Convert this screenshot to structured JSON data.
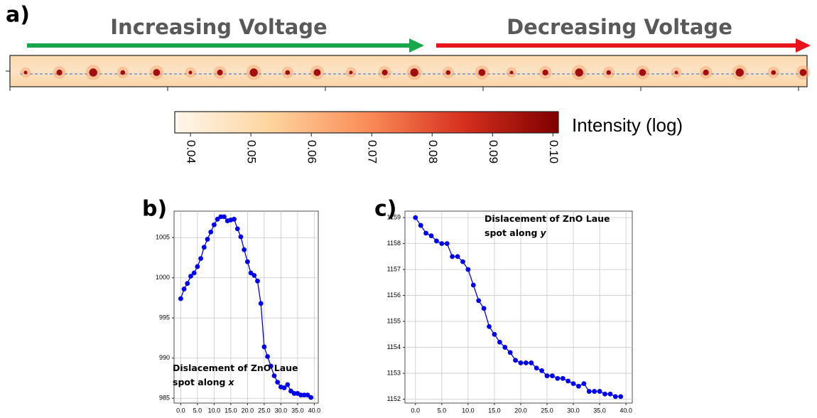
{
  "panel_a": {
    "label": "a)",
    "left_arrow": "Increasing Voltage",
    "right_arrow": "Decreasing Voltage"
  },
  "chart_data": [
    {
      "type": "colorbar",
      "label": "Intensity (log)",
      "colors": [
        "#fff7ec",
        "#fdd49e",
        "#fc8d59",
        "#d7301f",
        "#7f0000"
      ],
      "xlim": [
        0.0374,
        0.1009
      ],
      "xticks": [
        0.04,
        0.05,
        0.06,
        0.07,
        0.08,
        0.09,
        {
          "value": 0.1,
          "label": "0.10"
        }
      ]
    },
    {
      "type": "line",
      "panel_label": "b)",
      "annotation": [
        "Dislacement of ZnO Laue",
        "spot along"
      ],
      "annotation_var": "x",
      "x": [
        0,
        1,
        2,
        3,
        4,
        5,
        6,
        7,
        8,
        9,
        10,
        11,
        12,
        13,
        14,
        15,
        16,
        17,
        18,
        19,
        20,
        21,
        22,
        23,
        24,
        25,
        26,
        27,
        28,
        29,
        30,
        31,
        32,
        33,
        34,
        35,
        36,
        37,
        38,
        39
      ],
      "series": [
        {
          "color": "#0000ee",
          "values": [
            997.4,
            998.6,
            999.3,
            1000.2,
            1000.6,
            1001.4,
            1002.4,
            1003.8,
            1004.8,
            1005.7,
            1006.6,
            1007.3,
            1007.6,
            1007.6,
            1007.1,
            1007.2,
            1007.3,
            1006.1,
            1005.1,
            1003.5,
            1002.0,
            1000.6,
            1000.3,
            999.6,
            996.8,
            991.4,
            990.2,
            989.0,
            987.8,
            987.0,
            986.4,
            986.3,
            986.7,
            985.9,
            985.6,
            985.6,
            985.4,
            985.4,
            985.4,
            985.1
          ]
        }
      ],
      "xlim": [
        -2,
        41.2
      ],
      "ylim": [
        984.4,
        1008.3
      ],
      "grid": true,
      "xticks": [
        {
          "value": 0,
          "label": "0.0"
        },
        {
          "value": 5,
          "label": "5.0"
        },
        {
          "value": 10,
          "label": "10.0"
        },
        {
          "value": 15,
          "label": "15.0"
        },
        {
          "value": 20,
          "label": "20.0"
        },
        {
          "value": 25,
          "label": "25.0"
        },
        {
          "value": 30,
          "label": "30.0"
        },
        {
          "value": 35,
          "label": "35.0"
        },
        {
          "value": 40,
          "label": "40.0"
        }
      ],
      "yticks": [
        985,
        990,
        995,
        1000,
        1005
      ]
    },
    {
      "type": "line",
      "panel_label": "c)",
      "annotation": [
        "Dislacement of ZnO Laue",
        "spot along"
      ],
      "annotation_var": "y",
      "x": [
        0,
        1,
        2,
        3,
        4,
        5,
        6,
        7,
        8,
        9,
        10,
        11,
        12,
        13,
        14,
        15,
        16,
        17,
        18,
        19,
        20,
        21,
        22,
        23,
        24,
        25,
        26,
        27,
        28,
        29,
        30,
        31,
        32,
        33,
        34,
        35,
        36,
        37,
        38,
        39
      ],
      "series": [
        {
          "color": "#0000ee",
          "values": [
            1159.0,
            1158.7,
            1158.4,
            1158.3,
            1158.1,
            1158.0,
            1158.0,
            1157.5,
            1157.5,
            1157.3,
            1157.0,
            1156.4,
            1155.8,
            1155.5,
            1154.8,
            1154.5,
            1154.2,
            1154.0,
            1153.8,
            1153.5,
            1153.4,
            1153.4,
            1153.4,
            1153.2,
            1153.1,
            1152.9,
            1152.9,
            1152.8,
            1152.8,
            1152.7,
            1152.6,
            1152.5,
            1152.6,
            1152.3,
            1152.3,
            1152.3,
            1152.2,
            1152.2,
            1152.1,
            1152.1
          ]
        }
      ],
      "xlim": [
        -2,
        41.2
      ],
      "ylim": [
        1151.85,
        1159.25
      ],
      "grid": true,
      "xticks": [
        {
          "value": 0,
          "label": "0.0"
        },
        {
          "value": 5,
          "label": "5.0"
        },
        {
          "value": 10,
          "label": "10.0"
        },
        {
          "value": 15,
          "label": "15.0"
        },
        {
          "value": 20,
          "label": "20.0"
        },
        {
          "value": 25,
          "label": "25.0"
        },
        {
          "value": 30,
          "label": "30.0"
        },
        {
          "value": 35,
          "label": "35.0"
        },
        {
          "value": 40,
          "label": "40.0"
        }
      ],
      "yticks": [
        1152,
        1153,
        1154,
        1155,
        1156,
        1157,
        1158,
        1159
      ]
    }
  ]
}
